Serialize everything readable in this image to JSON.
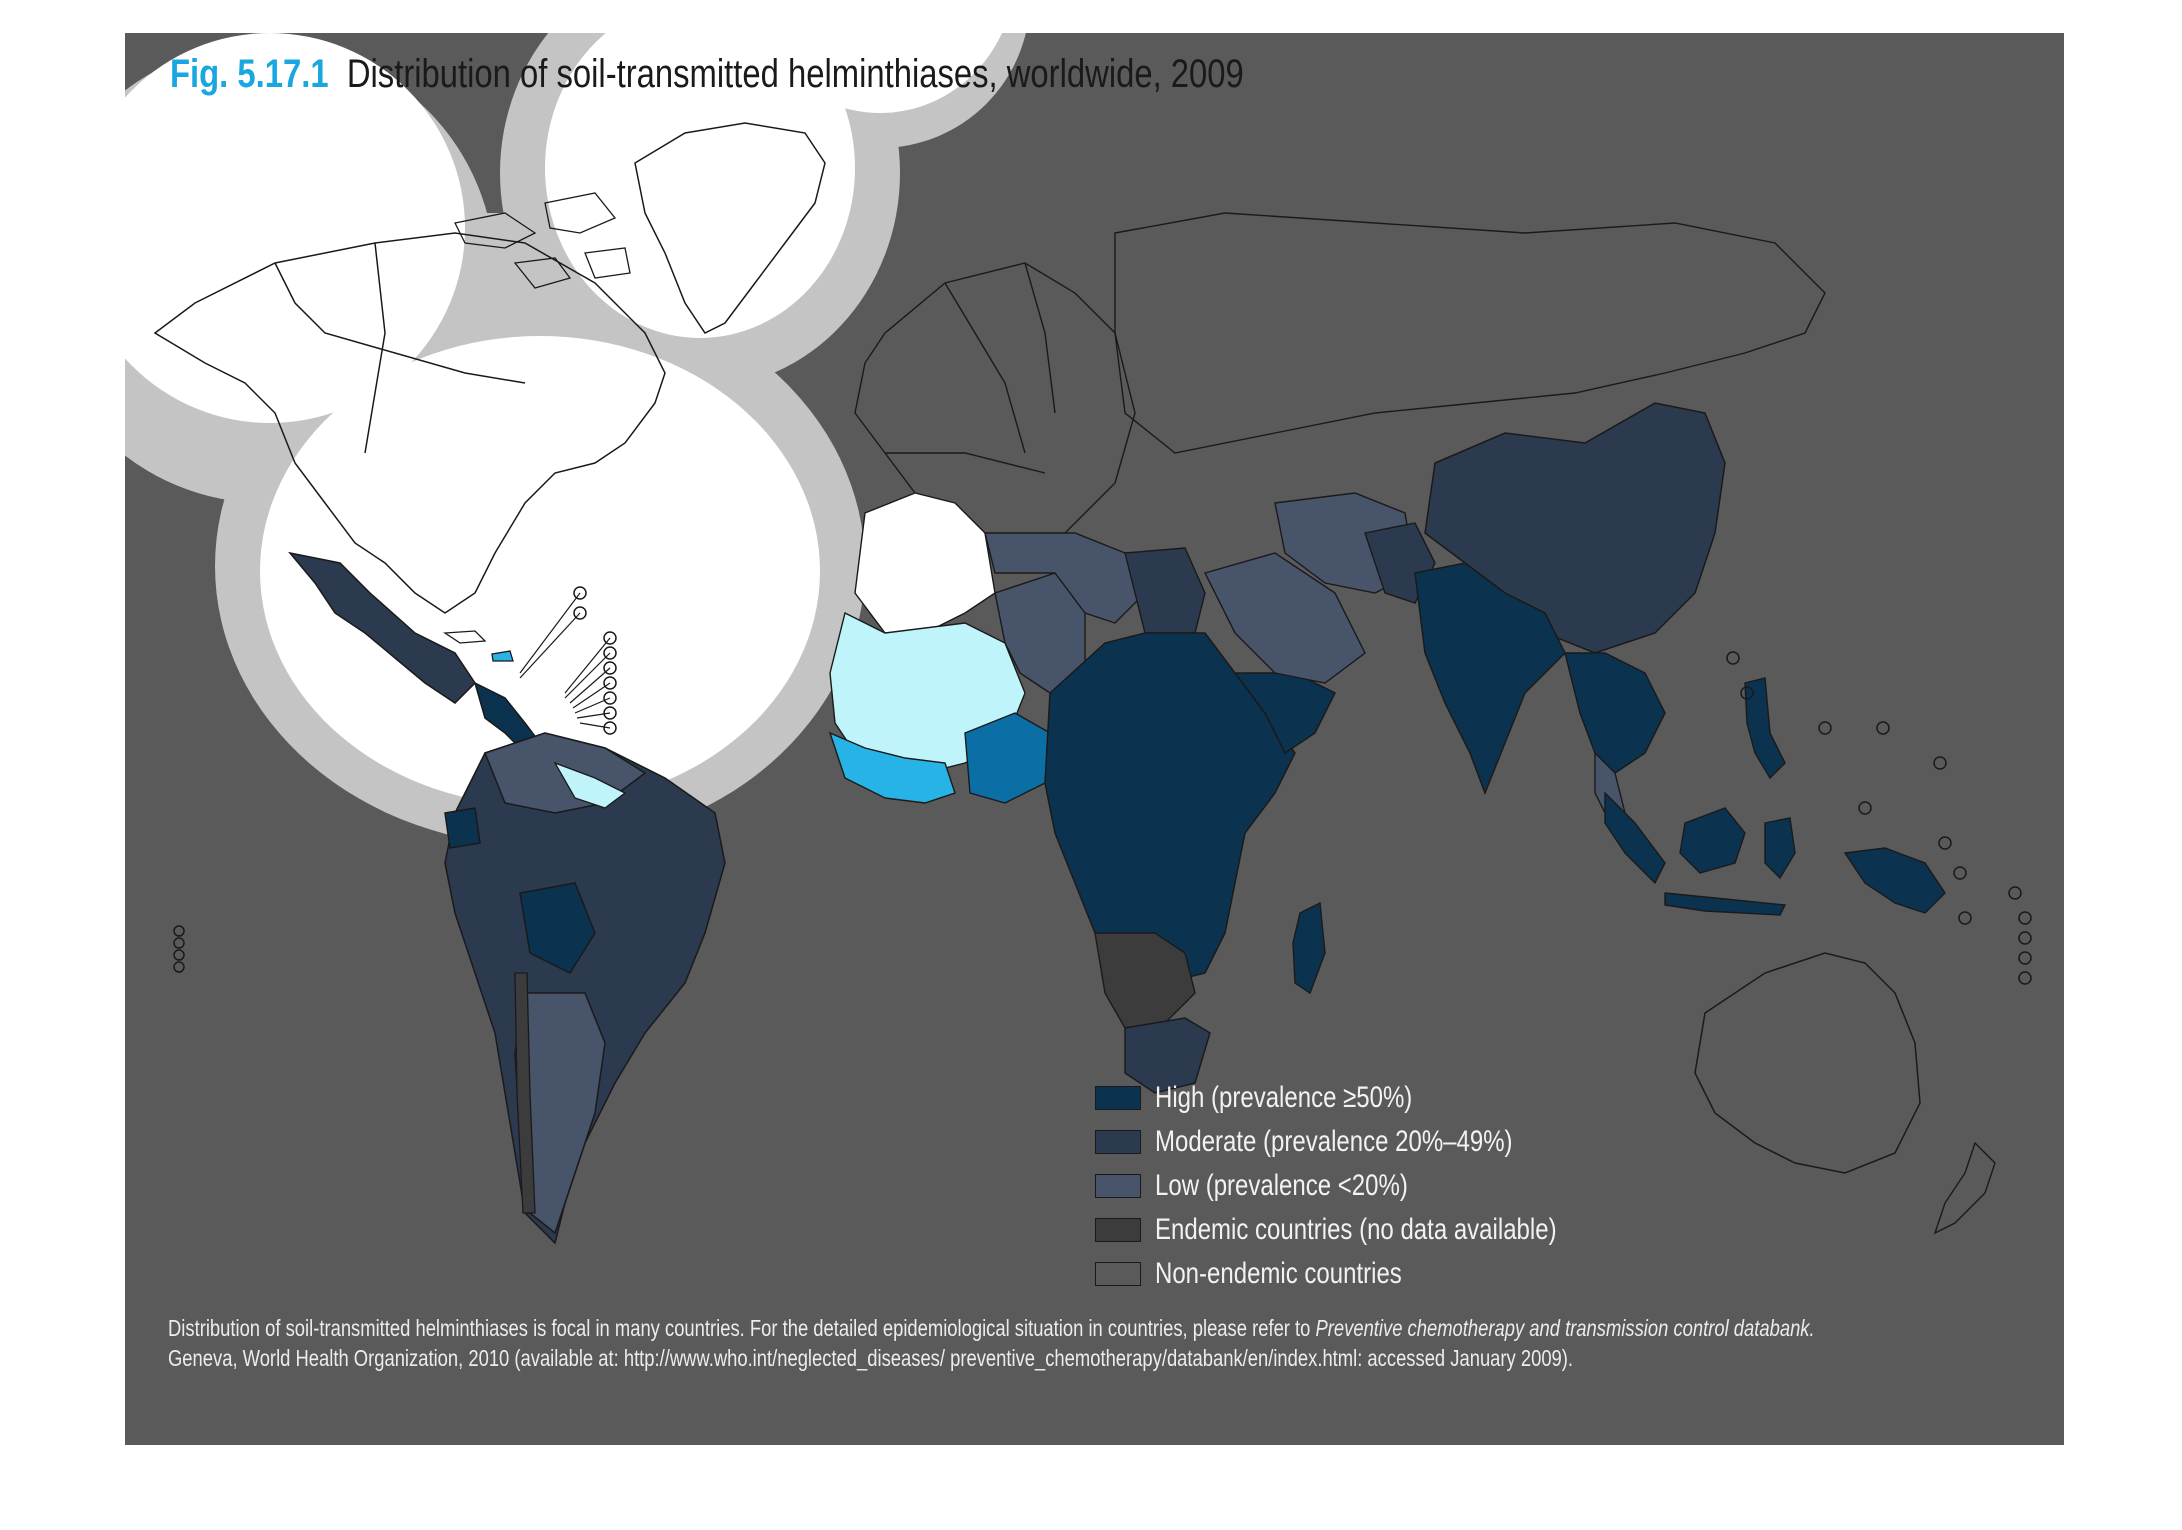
{
  "title": {
    "fig_number": "Fig. 5.17.1",
    "text": "Distribution of soil-transmitted helminthiases, worldwide, 2009"
  },
  "legend": [
    {
      "label": "High (prevalence ≥50%)",
      "color": "#0b3350"
    },
    {
      "label": "Moderate (prevalence 20%–49%)",
      "color": "#2b3a4f"
    },
    {
      "label": "Low (prevalence <20%)",
      "color": "#47546a"
    },
    {
      "label": "Endemic countries (no data available)",
      "color": "#3c3c3c"
    },
    {
      "label": "Non-endemic countries",
      "color": "#5a5a5a"
    }
  ],
  "note": {
    "line1_prefix": "Distribution of soil-transmitted helminthiases is focal in many countries. For the detailed epidemiological situation in countries, please refer to ",
    "line1_italic": "Preventive chemotherapy and transmission control databank.",
    "line2": "Geneva, World Health Organization, 2010 (available at: http://www.who.int/neglected_diseases/ preventive_chemotherapy/databank/en/index.html: accessed January 2009)."
  },
  "colors": {
    "background_panel": "#5a5a5a",
    "title_accent": "#1aa7e0",
    "spotlight_white": "#ffffff",
    "spotlight_halo": "#c4c4c4",
    "highlight_light": "#bff4fb",
    "highlight_mid": "#27b3e6",
    "highlight_deep": "#0b6fa6"
  }
}
